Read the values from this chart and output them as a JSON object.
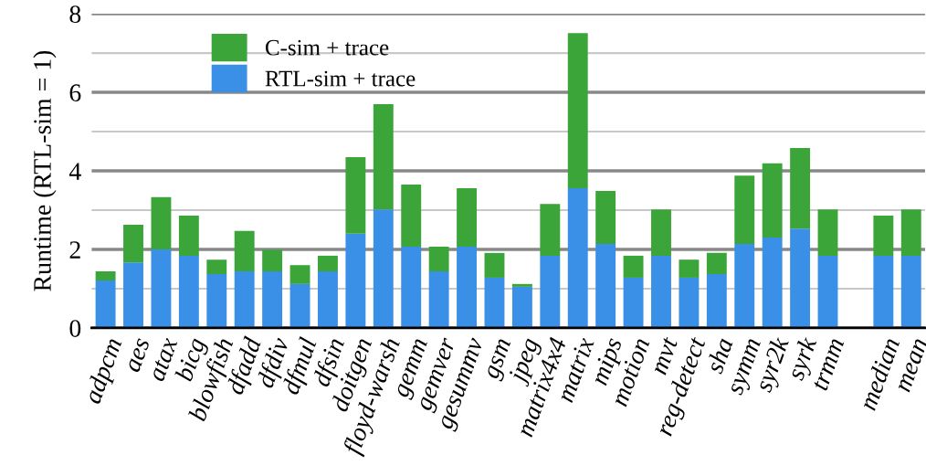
{
  "chart_data": {
    "type": "bar",
    "stacked": true,
    "ylabel": "Runtime (RTL-sim = 1)",
    "categories": [
      "adpcm",
      "aes",
      "atax",
      "bicg",
      "blowfish",
      "dfadd",
      "dfdiv",
      "dfmul",
      "dfsin",
      "doitgen",
      "floyd-warsh",
      "gemm",
      "gemver",
      "gesummv",
      "gsm",
      "jpeg",
      "matrix4x4",
      "matrix",
      "mips",
      "motion",
      "mvt",
      "reg-detect",
      "sha",
      "symm",
      "syr2k",
      "syrk",
      "trmm",
      null,
      "median",
      "mean"
    ],
    "series": [
      {
        "name": "RTL-sim + trace",
        "color": "#3a8fe6",
        "values": [
          1.21,
          1.67,
          2.0,
          1.84,
          1.37,
          1.44,
          1.44,
          1.12,
          1.44,
          2.4,
          3.02,
          2.07,
          1.44,
          2.07,
          1.28,
          1.05,
          1.84,
          3.56,
          2.14,
          1.28,
          1.84,
          1.28,
          1.37,
          2.14,
          2.3,
          2.53,
          1.84,
          null,
          1.84,
          1.84
        ]
      },
      {
        "name": "C-sim + trace",
        "color": "#3ca53a",
        "values": [
          0.23,
          0.96,
          1.33,
          1.02,
          0.37,
          1.03,
          0.55,
          0.48,
          0.4,
          1.95,
          2.68,
          1.58,
          0.63,
          1.49,
          0.63,
          0.07,
          1.32,
          3.95,
          1.35,
          0.56,
          1.18,
          0.46,
          0.54,
          1.74,
          1.89,
          2.05,
          1.18,
          null,
          1.02,
          1.18
        ]
      }
    ],
    "ylim": [
      0,
      8
    ],
    "yticks": [
      0,
      {
        "value": 1,
        "label": null
      },
      2,
      {
        "value": 3,
        "label": null
      },
      4,
      {
        "value": 5,
        "label": null
      },
      6,
      {
        "value": 7,
        "label": null
      },
      8
    ],
    "grid": "y",
    "legend": "top left"
  }
}
